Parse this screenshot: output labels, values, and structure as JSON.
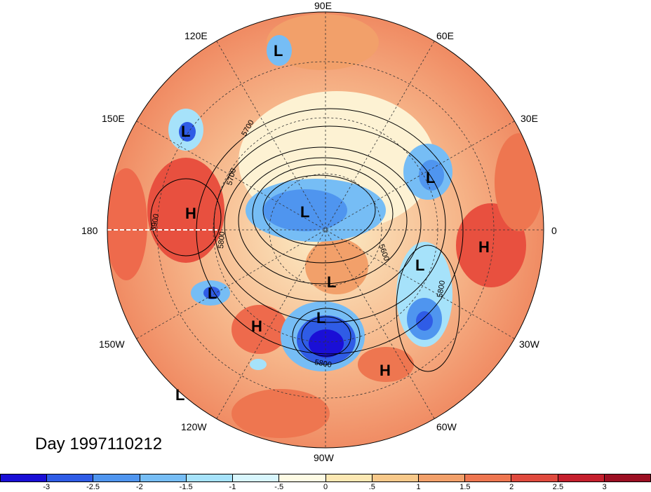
{
  "title": "Day 1997110212",
  "longitude_labels": [
    "90E",
    "60E",
    "30E",
    "0",
    "30W",
    "60W",
    "90W",
    "120W",
    "150W",
    "180",
    "150E",
    "120E"
  ],
  "contour_labels": [
    "5700",
    "5700",
    "5800",
    "5600",
    "5800",
    "5800",
    "5900"
  ],
  "pressure_systems": [
    {
      "type": "L"
    },
    {
      "type": "L"
    },
    {
      "type": "L"
    },
    {
      "type": "L"
    },
    {
      "type": "L"
    },
    {
      "type": "L"
    },
    {
      "type": "L"
    },
    {
      "type": "L"
    },
    {
      "type": "L"
    },
    {
      "type": "H"
    },
    {
      "type": "H"
    },
    {
      "type": "H"
    },
    {
      "type": "H"
    }
  ],
  "colorbar": {
    "tick_labels": [
      "-3",
      "-2.5",
      "-2",
      "-1.5",
      "-1",
      "-.5",
      "0",
      ".5",
      "1",
      "1.5",
      "2",
      "2.5",
      "3"
    ],
    "colors": [
      "#1a0fd6",
      "#2f5ce6",
      "#4f95ef",
      "#76bdf5",
      "#a6e2fa",
      "#d8f6fd",
      "#fefbe4",
      "#fce8b3",
      "#f8c98a",
      "#f2a06a",
      "#ee7650",
      "#e04a3e",
      "#c51f2d",
      "#9c0f22"
    ]
  },
  "colors": {
    "ocean_warm": "#f4a274",
    "strong_warm": "#e8503f",
    "cool": "#7cb8f0",
    "deep_cool": "#2252d9"
  }
}
